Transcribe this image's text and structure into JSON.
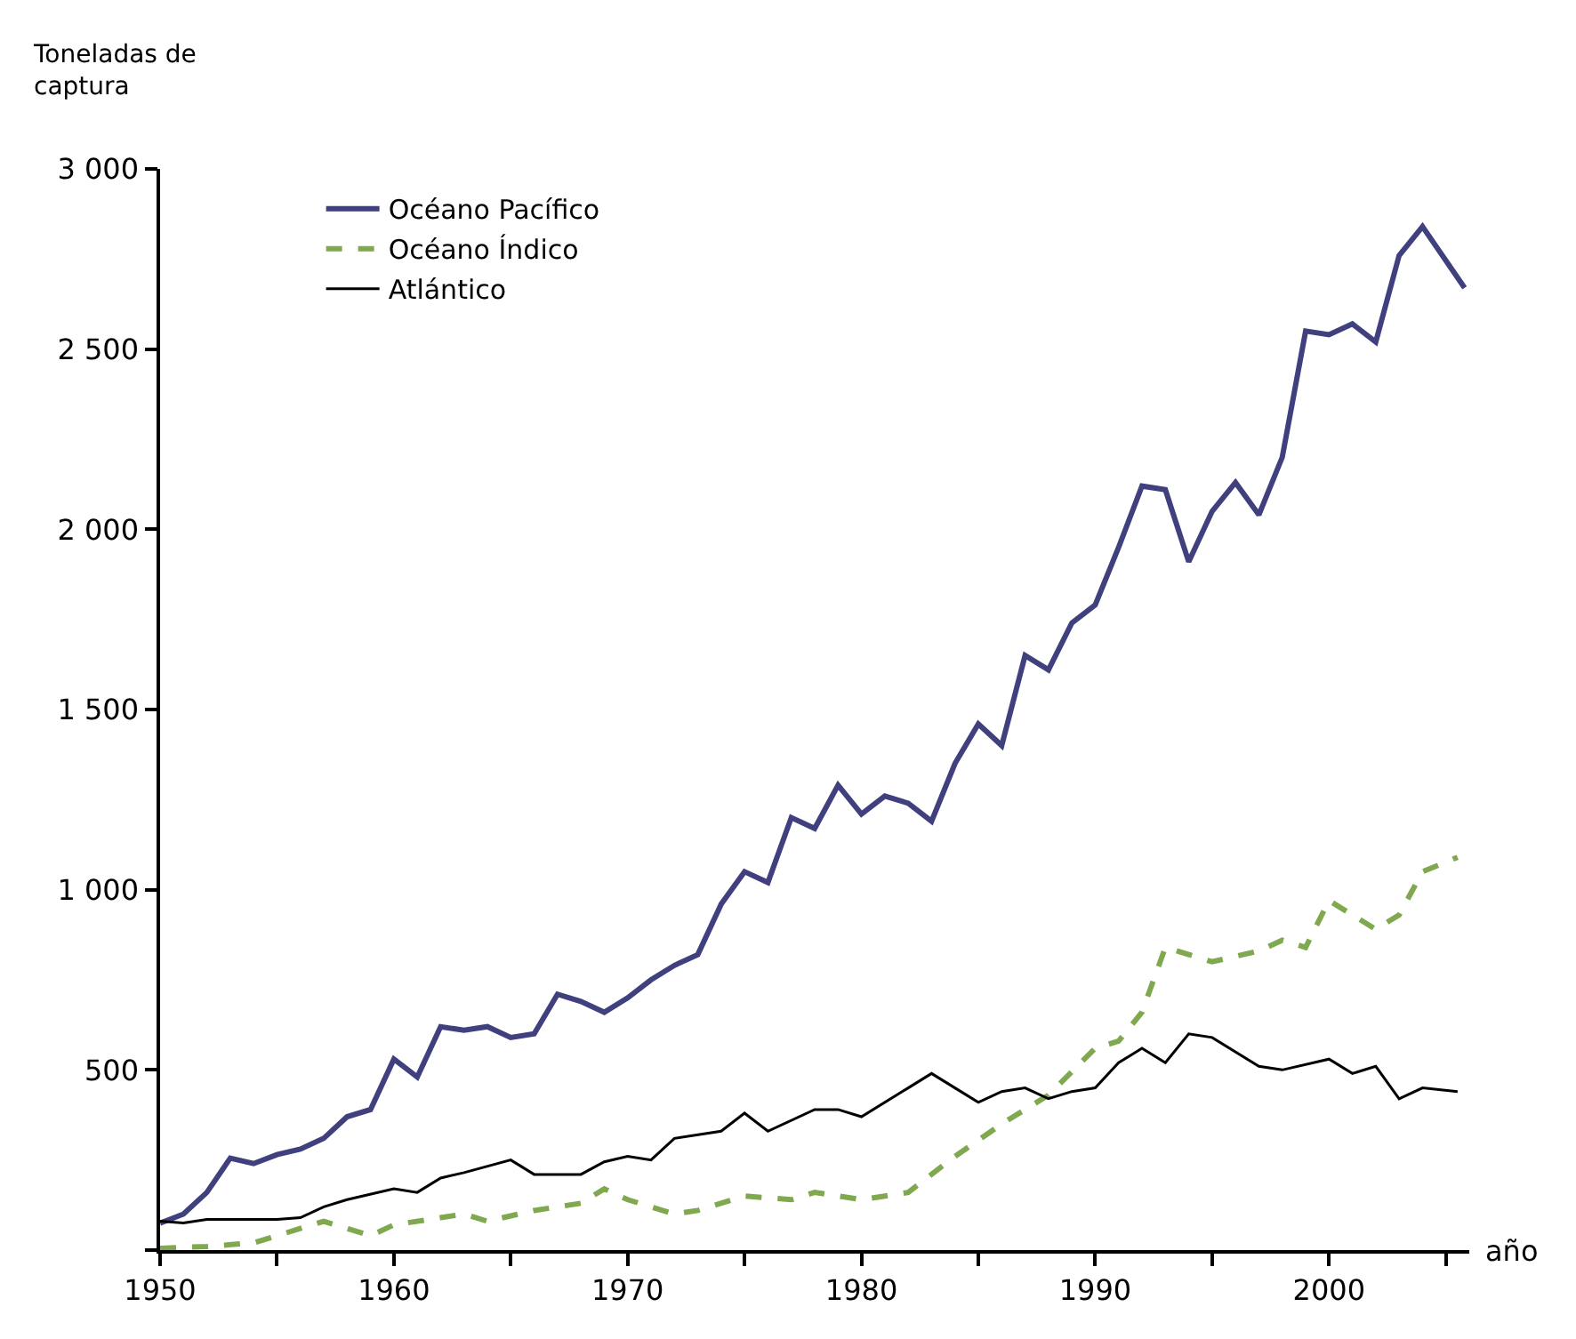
{
  "chart_data": {
    "type": "line",
    "xlabel": "año",
    "ylabel": "Toneladas de captura",
    "xlim": [
      1950,
      2006
    ],
    "ylim": [
      0,
      3000
    ],
    "xticks": [
      1950,
      {
        "value": 1955,
        "label": null
      },
      1960,
      {
        "value": 1965,
        "label": null
      },
      1970,
      {
        "value": 1975,
        "label": null
      },
      1980,
      {
        "value": 1985,
        "label": null
      },
      1990,
      {
        "value": 1995,
        "label": null
      },
      2000,
      {
        "value": 2005,
        "label": null
      }
    ],
    "yticks": [
      {
        "value": 0,
        "label": null
      },
      500,
      {
        "value": 1000,
        "label": "1 000"
      },
      {
        "value": 1500,
        "label": "1 500"
      },
      {
        "value": 2000,
        "label": "2 000"
      },
      {
        "value": 2500,
        "label": "2 500"
      },
      {
        "value": 3000,
        "label": "3 000"
      }
    ],
    "legend": "top left",
    "series": [
      {
        "name": "Océano Pacífico",
        "color": "#40407f",
        "line_style": "solid",
        "x": [
          1950,
          1951,
          1952,
          1953,
          1954,
          1955,
          1956,
          1957,
          1958,
          1959,
          1960,
          1961,
          1962,
          1963,
          1964,
          1965,
          1966,
          1967,
          1968,
          1969,
          1970,
          1971,
          1972,
          1973,
          1974,
          1975,
          1976,
          1977,
          1978,
          1979,
          1980,
          1981,
          1982,
          1983,
          1984,
          1985,
          1986,
          1987,
          1988,
          1989,
          1990,
          1991,
          1992,
          1993,
          1994,
          1995,
          1996,
          1997,
          1998,
          1999,
          2000,
          2001,
          2002,
          2003,
          2004,
          2005.8
        ],
        "values": [
          75,
          100,
          160,
          255,
          240,
          265,
          280,
          310,
          370,
          390,
          530,
          480,
          620,
          610,
          620,
          590,
          600,
          710,
          690,
          660,
          700,
          750,
          790,
          820,
          960,
          1050,
          1020,
          1200,
          1170,
          1290,
          1210,
          1260,
          1240,
          1190,
          1350,
          1460,
          1400,
          1650,
          1610,
          1740,
          1790,
          1950,
          2120,
          2110,
          1910,
          2050,
          2130,
          2040,
          2200,
          2550,
          2540,
          2570,
          2520,
          2760,
          2840,
          2670
        ]
      },
      {
        "name": "Océano Índico",
        "color": "#7fa84f",
        "line_style": "dashed",
        "x": [
          1950,
          1952,
          1954,
          1956,
          1957,
          1958,
          1959,
          1960,
          1962,
          1963,
          1964,
          1966,
          1968,
          1969,
          1970,
          1972,
          1973,
          1975,
          1977,
          1978,
          1980,
          1982,
          1984,
          1986,
          1988,
          1990,
          1991,
          1992,
          1993,
          1994,
          1995,
          1997,
          1998,
          1999,
          2000,
          2002,
          2003,
          2004,
          2005.5
        ],
        "values": [
          5,
          10,
          20,
          60,
          80,
          60,
          40,
          70,
          90,
          100,
          80,
          110,
          130,
          170,
          140,
          100,
          110,
          150,
          140,
          160,
          140,
          160,
          260,
          350,
          430,
          560,
          580,
          660,
          840,
          820,
          800,
          830,
          860,
          840,
          970,
          890,
          930,
          1050,
          1090
        ]
      },
      {
        "name": "Atlántico",
        "color": "#000000",
        "line_style": "solid",
        "x": [
          1950,
          1951,
          1952,
          1955,
          1956,
          1957,
          1958,
          1960,
          1961,
          1962,
          1963,
          1965,
          1966,
          1968,
          1969,
          1970,
          1971,
          1972,
          1974,
          1975,
          1976,
          1978,
          1979,
          1980,
          1982,
          1983,
          1984,
          1985,
          1986,
          1987,
          1988,
          1989,
          1990,
          1991,
          1992,
          1993,
          1994,
          1995,
          1997,
          1998,
          2000,
          2001,
          2002,
          2003,
          2004,
          2005.5
        ],
        "values": [
          80,
          75,
          85,
          85,
          90,
          120,
          140,
          170,
          160,
          200,
          215,
          250,
          210,
          210,
          245,
          260,
          250,
          310,
          330,
          380,
          330,
          390,
          390,
          370,
          450,
          490,
          450,
          410,
          440,
          450,
          420,
          440,
          450,
          520,
          560,
          520,
          600,
          590,
          510,
          500,
          530,
          490,
          510,
          420,
          450,
          440
        ]
      }
    ]
  }
}
